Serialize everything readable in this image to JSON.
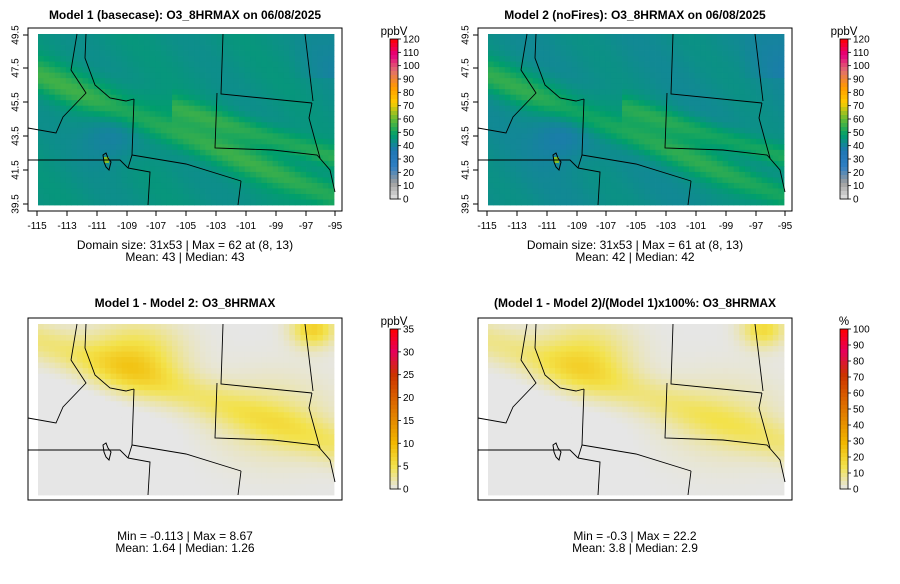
{
  "colors": {
    "map_grey": "#e6e6e6",
    "diff_yellow": "#f3e24a",
    "boundary": "#000000",
    "abs_scale_stops": [
      "#e0e0e0",
      "#9e9e9e",
      "#2f7fc4",
      "#1f77b4",
      "#009f6b",
      "#66bb33",
      "#ffcc00",
      "#ff9900",
      "#e07070",
      "#e6007e",
      "#ff0000"
    ],
    "diff_scale_stops": [
      "#e6e6e6",
      "#f3e24a",
      "#f2b800",
      "#e58a00",
      "#d95f00",
      "#cc3300",
      "#e6005c",
      "#ff0000"
    ]
  },
  "chart_data": [
    {
      "type": "heatmap",
      "title": "Model 1 (basecase): O3_8HRMAX on 06/08/2025",
      "xlim": [
        -115,
        -95
      ],
      "ylim": [
        39.5,
        49.5
      ],
      "x_ticks": [
        "-115",
        "-113",
        "-111",
        "-109",
        "-107",
        "-105",
        "-103",
        "-101",
        "-99",
        "-97",
        "-95"
      ],
      "y_ticks": [
        "39.5",
        "41.5",
        "43.5",
        "45.5",
        "47.5",
        "49.5"
      ],
      "colorbar": {
        "unit": "ppbV",
        "range": [
          0,
          120
        ],
        "ticks": [
          "0",
          "10",
          "20",
          "30",
          "40",
          "50",
          "60",
          "70",
          "80",
          "90",
          "100",
          "110",
          "120"
        ]
      },
      "grid": {
        "rows": 31,
        "cols": 53
      },
      "stats_lines": [
        "Domain size: 31x53 | Max = 62 at (8, 13)",
        "Mean: 43 |  Median: 43"
      ],
      "max": 62,
      "max_at": [
        8,
        13
      ],
      "mean": 43,
      "median": 43
    },
    {
      "type": "heatmap",
      "title": "Model 2 (noFires): O3_8HRMAX on 06/08/2025",
      "xlim": [
        -115,
        -95
      ],
      "ylim": [
        39.5,
        49.5
      ],
      "x_ticks": [
        "-115",
        "-113",
        "-111",
        "-109",
        "-107",
        "-105",
        "-103",
        "-101",
        "-99",
        "-97",
        "-95"
      ],
      "y_ticks": [
        "39.5",
        "41.5",
        "43.5",
        "45.5",
        "47.5",
        "49.5"
      ],
      "colorbar": {
        "unit": "ppbV",
        "range": [
          0,
          120
        ],
        "ticks": [
          "0",
          "10",
          "20",
          "30",
          "40",
          "50",
          "60",
          "70",
          "80",
          "90",
          "100",
          "110",
          "120"
        ]
      },
      "grid": {
        "rows": 31,
        "cols": 53
      },
      "stats_lines": [
        "Domain size: 31x53 | Max = 61 at (8, 13)",
        "Mean: 42 |  Median: 42"
      ],
      "max": 61,
      "max_at": [
        8,
        13
      ],
      "mean": 42,
      "median": 42
    },
    {
      "type": "heatmap",
      "title": "Model 1 - Model 2: O3_8HRMAX",
      "colorbar": {
        "unit": "ppbV",
        "range": [
          0,
          35
        ],
        "ticks": [
          "0",
          "5",
          "10",
          "15",
          "20",
          "25",
          "30",
          "35"
        ]
      },
      "stats_lines": [
        "Min = -0.113 | Max = 8.67",
        "Mean: 1.64 |  Median: 1.26"
      ],
      "min": -0.113,
      "max": 8.67,
      "mean": 1.64,
      "median": 1.26
    },
    {
      "type": "heatmap",
      "title": "(Model 1 - Model 2)/(Model 1)x100%: O3_8HRMAX",
      "colorbar": {
        "unit": "%",
        "range": [
          0,
          100
        ],
        "ticks": [
          "0",
          "10",
          "20",
          "30",
          "40",
          "50",
          "60",
          "70",
          "80",
          "90",
          "100"
        ]
      },
      "stats_lines": [
        "Min = -0.3 | Max = 22.2",
        "Mean: 3.8 |  Median: 2.9"
      ],
      "min": -0.3,
      "max": 22.2,
      "mean": 3.8,
      "median": 2.9
    }
  ]
}
